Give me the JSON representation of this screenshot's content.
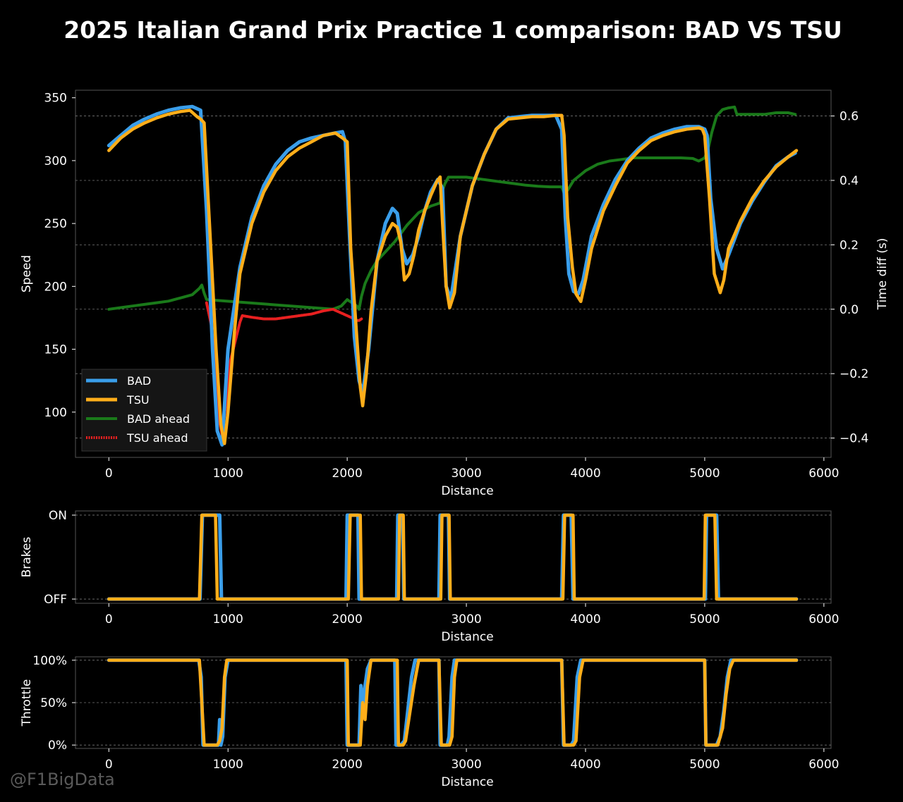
{
  "title": "2025 Italian Grand Prix Practice 1 comparison: BAD VS TSU",
  "watermark": "@F1BigData",
  "colors": {
    "BAD": "#3a9eea",
    "TSU": "#ffae1a",
    "BAD_ahead": "#1a7a1a",
    "TSU_ahead": "#e82020",
    "grid": "#777777",
    "frame": "#555555"
  },
  "chart_data": [
    {
      "id": "speed",
      "type": "line",
      "xlabel": "Distance",
      "ylabel": "Speed",
      "y2label": "Time diff (s)",
      "xlim": [
        -280,
        6060
      ],
      "ylim": [
        64,
        356
      ],
      "y2lim": [
        -0.46,
        0.68
      ],
      "xticks": [
        "0",
        "1000",
        "2000",
        "3000",
        "4000",
        "5000",
        "6000"
      ],
      "yticks": [
        "100",
        "150",
        "200",
        "250",
        "300",
        "350"
      ],
      "y2ticks": [
        "−0.4",
        "−0.2",
        "0.0",
        "0.2",
        "0.4",
        "0.6"
      ],
      "legend": {
        "position": "lower-left",
        "entries": [
          "BAD",
          "TSU",
          "BAD ahead",
          "TSU ahead"
        ]
      },
      "series": [
        {
          "name": "BAD",
          "axis": "left",
          "x": [
            0,
            100,
            200,
            300,
            400,
            500,
            600,
            700,
            770,
            820,
            870,
            910,
            950,
            1000,
            1100,
            1200,
            1300,
            1400,
            1500,
            1600,
            1700,
            1800,
            1900,
            1960,
            1985,
            2020,
            2060,
            2100,
            2130,
            2180,
            2250,
            2320,
            2380,
            2420,
            2460,
            2500,
            2550,
            2600,
            2650,
            2700,
            2760,
            2800,
            2830,
            2870,
            2950,
            3050,
            3150,
            3250,
            3350,
            3450,
            3550,
            3650,
            3750,
            3800,
            3830,
            3860,
            3900,
            3940,
            3980,
            4050,
            4150,
            4250,
            4350,
            4450,
            4550,
            4650,
            4750,
            4850,
            4950,
            5000,
            5020,
            5050,
            5100,
            5150,
            5200,
            5300,
            5400,
            5500,
            5600,
            5700,
            5760
          ],
          "y": [
            312,
            320,
            328,
            333,
            337,
            340,
            342,
            343,
            340,
            260,
            150,
            85,
            74,
            150,
            215,
            255,
            280,
            297,
            308,
            315,
            318,
            320,
            322,
            323,
            315,
            240,
            160,
            125,
            115,
            150,
            220,
            250,
            262,
            258,
            230,
            218,
            225,
            240,
            260,
            275,
            285,
            278,
            200,
            190,
            240,
            280,
            305,
            325,
            334,
            335,
            336,
            336,
            336,
            325,
            255,
            210,
            196,
            194,
            205,
            240,
            265,
            285,
            300,
            310,
            318,
            322,
            325,
            327,
            327,
            325,
            320,
            270,
            230,
            214,
            225,
            250,
            268,
            283,
            296,
            303,
            306
          ]
        },
        {
          "name": "TSU",
          "axis": "left",
          "x": [
            0,
            100,
            200,
            300,
            400,
            500,
            600,
            680,
            740,
            770,
            800,
            850,
            900,
            940,
            970,
            1000,
            1050,
            1100,
            1200,
            1300,
            1400,
            1500,
            1600,
            1700,
            1800,
            1900,
            1960,
            2000,
            2030,
            2080,
            2110,
            2130,
            2160,
            2200,
            2250,
            2320,
            2380,
            2420,
            2450,
            2480,
            2520,
            2560,
            2600,
            2650,
            2700,
            2750,
            2780,
            2800,
            2830,
            2860,
            2900,
            2950,
            3050,
            3150,
            3250,
            3350,
            3450,
            3550,
            3650,
            3750,
            3800,
            3820,
            3850,
            3890,
            3920,
            3960,
            4000,
            4050,
            4150,
            4250,
            4350,
            4450,
            4550,
            4650,
            4750,
            4850,
            4950,
            4980,
            5000,
            5040,
            5080,
            5130,
            5160,
            5200,
            5300,
            5400,
            5500,
            5600,
            5700,
            5770
          ],
          "y": [
            308,
            318,
            325,
            330,
            334,
            337,
            339,
            340,
            335,
            333,
            330,
            240,
            150,
            90,
            75,
            100,
            160,
            210,
            250,
            275,
            292,
            303,
            310,
            315,
            320,
            322,
            318,
            315,
            230,
            160,
            120,
            105,
            130,
            180,
            220,
            240,
            250,
            247,
            235,
            205,
            210,
            225,
            245,
            260,
            272,
            283,
            287,
            250,
            200,
            183,
            195,
            240,
            280,
            305,
            325,
            333,
            334,
            335,
            335,
            336,
            336,
            320,
            255,
            215,
            194,
            188,
            205,
            230,
            260,
            280,
            298,
            308,
            316,
            320,
            323,
            325,
            326,
            325,
            320,
            270,
            210,
            195,
            205,
            230,
            252,
            270,
            284,
            295,
            303,
            308
          ]
        },
        {
          "name": "BAD ahead",
          "axis": "right",
          "x": [
            0,
            100,
            200,
            300,
            400,
            500,
            600,
            700,
            760,
            780,
            800,
            820,
            1880,
            1950,
            2000,
            2040,
            2080,
            2100,
            2120,
            2150,
            2200,
            2250,
            2300,
            2400,
            2500,
            2600,
            2700,
            2780,
            2790,
            2820,
            2850,
            2900,
            3000,
            3100,
            3200,
            3300,
            3400,
            3500,
            3600,
            3700,
            3800,
            3820,
            3850,
            3900,
            4000,
            4100,
            4200,
            4300,
            4400,
            4500,
            4600,
            4700,
            4800,
            4900,
            4950,
            5000,
            5030,
            5060,
            5100,
            5150,
            5200,
            5250,
            5270,
            5300,
            5350,
            5400,
            5500,
            5600,
            5700,
            5760
          ],
          "y": [
            0.0,
            0.005,
            0.01,
            0.015,
            0.02,
            0.025,
            0.035,
            0.045,
            0.065,
            0.075,
            0.05,
            0.03,
            0.0,
            0.01,
            0.03,
            0.02,
            0.01,
            0.0,
            0.04,
            0.08,
            0.12,
            0.15,
            0.17,
            0.21,
            0.26,
            0.3,
            0.32,
            0.33,
            0.36,
            0.39,
            0.41,
            0.41,
            0.41,
            0.405,
            0.4,
            0.395,
            0.39,
            0.385,
            0.382,
            0.38,
            0.38,
            0.36,
            0.37,
            0.4,
            0.43,
            0.45,
            0.46,
            0.465,
            0.47,
            0.47,
            0.47,
            0.47,
            0.47,
            0.468,
            0.46,
            0.47,
            0.5,
            0.55,
            0.6,
            0.62,
            0.625,
            0.628,
            0.605,
            0.605,
            0.605,
            0.605,
            0.605,
            0.61,
            0.61,
            0.605
          ]
        },
        {
          "name": "TSU ahead",
          "axis": "right",
          "x": [
            820,
            860,
            900,
            930,
            950,
            980,
            1020,
            1060,
            1100,
            1120,
            1200,
            1300,
            1400,
            1500,
            1600,
            1700,
            1800,
            1880,
            2060,
            2080,
            2100,
            2120
          ],
          "y": [
            0.02,
            -0.05,
            -0.2,
            -0.35,
            -0.39,
            -0.3,
            -0.16,
            -0.1,
            -0.04,
            -0.02,
            -0.025,
            -0.03,
            -0.03,
            -0.025,
            -0.02,
            -0.015,
            -0.005,
            0.0,
            -0.03,
            -0.035,
            -0.035,
            -0.03
          ]
        }
      ]
    },
    {
      "id": "brakes",
      "type": "line",
      "xlabel": "Distance",
      "ylabel": "Brakes",
      "xlim": [
        -280,
        6060
      ],
      "ylim": [
        -0.05,
        1.05
      ],
      "xticks": [
        "0",
        "1000",
        "2000",
        "3000",
        "4000",
        "5000",
        "6000"
      ],
      "yticks": [
        "OFF",
        "ON"
      ],
      "series": [
        {
          "name": "BAD",
          "x": [
            0,
            765,
            785,
            930,
            945,
            1990,
            2000,
            2090,
            2100,
            2415,
            2425,
            2465,
            2475,
            2770,
            2780,
            2850,
            2860,
            3800,
            3815,
            3880,
            3895,
            5005,
            5015,
            5100,
            5115,
            5770
          ],
          "y": [
            0,
            0,
            1,
            1,
            0,
            0,
            1,
            1,
            0,
            0,
            1,
            1,
            0,
            0,
            1,
            1,
            0,
            0,
            1,
            1,
            0,
            0,
            1,
            1,
            0,
            0
          ]
        },
        {
          "name": "TSU",
          "x": [
            0,
            760,
            780,
            895,
            910,
            2010,
            2025,
            2110,
            2120,
            2430,
            2440,
            2470,
            2480,
            2785,
            2795,
            2855,
            2865,
            3810,
            3825,
            3895,
            3905,
            4995,
            5005,
            5085,
            5100,
            5770
          ],
          "y": [
            0,
            0,
            1,
            1,
            0,
            0,
            1,
            1,
            0,
            0,
            1,
            1,
            0,
            0,
            1,
            1,
            0,
            0,
            1,
            1,
            0,
            0,
            1,
            1,
            0,
            0
          ]
        }
      ]
    },
    {
      "id": "throttle",
      "type": "line",
      "xlabel": "Distance",
      "ylabel": "Throttle",
      "xlim": [
        -280,
        6060
      ],
      "ylim": [
        -4,
        104
      ],
      "xticks": [
        "0",
        "1000",
        "2000",
        "3000",
        "4000",
        "5000",
        "6000"
      ],
      "yticks": [
        "0%",
        "50%",
        "100%"
      ],
      "series": [
        {
          "name": "BAD",
          "x": [
            0,
            755,
            775,
            790,
            920,
            930,
            940,
            955,
            975,
            1000,
            1990,
            2000,
            2100,
            2115,
            2130,
            2140,
            2170,
            2200,
            2400,
            2410,
            2450,
            2480,
            2540,
            2570,
            2770,
            2780,
            2840,
            2855,
            2880,
            2900,
            3800,
            3815,
            3880,
            3900,
            3930,
            3960,
            5000,
            5010,
            5100,
            5130,
            5160,
            5190,
            5220,
            5770
          ],
          "y": [
            100,
            100,
            80,
            0,
            0,
            30,
            0,
            10,
            80,
            100,
            100,
            0,
            0,
            70,
            40,
            60,
            90,
            100,
            100,
            0,
            0,
            5,
            80,
            100,
            100,
            0,
            0,
            10,
            80,
            100,
            100,
            0,
            0,
            5,
            80,
            100,
            100,
            0,
            0,
            10,
            40,
            80,
            100,
            100
          ]
        },
        {
          "name": "TSU",
          "x": [
            0,
            760,
            800,
            910,
            930,
            950,
            970,
            990,
            2000,
            2010,
            2110,
            2130,
            2150,
            2170,
            2200,
            2220,
            2420,
            2430,
            2470,
            2490,
            2560,
            2600,
            2770,
            2790,
            2860,
            2880,
            2900,
            2920,
            3800,
            3820,
            3900,
            3920,
            3950,
            3980,
            5000,
            5010,
            5110,
            5150,
            5180,
            5210,
            5240,
            5770
          ],
          "y": [
            100,
            100,
            0,
            0,
            5,
            20,
            80,
            100,
            100,
            0,
            0,
            50,
            30,
            70,
            100,
            100,
            100,
            0,
            0,
            5,
            70,
            100,
            100,
            0,
            0,
            10,
            80,
            100,
            100,
            0,
            0,
            5,
            80,
            100,
            100,
            0,
            0,
            20,
            60,
            90,
            100,
            100
          ]
        }
      ]
    }
  ]
}
